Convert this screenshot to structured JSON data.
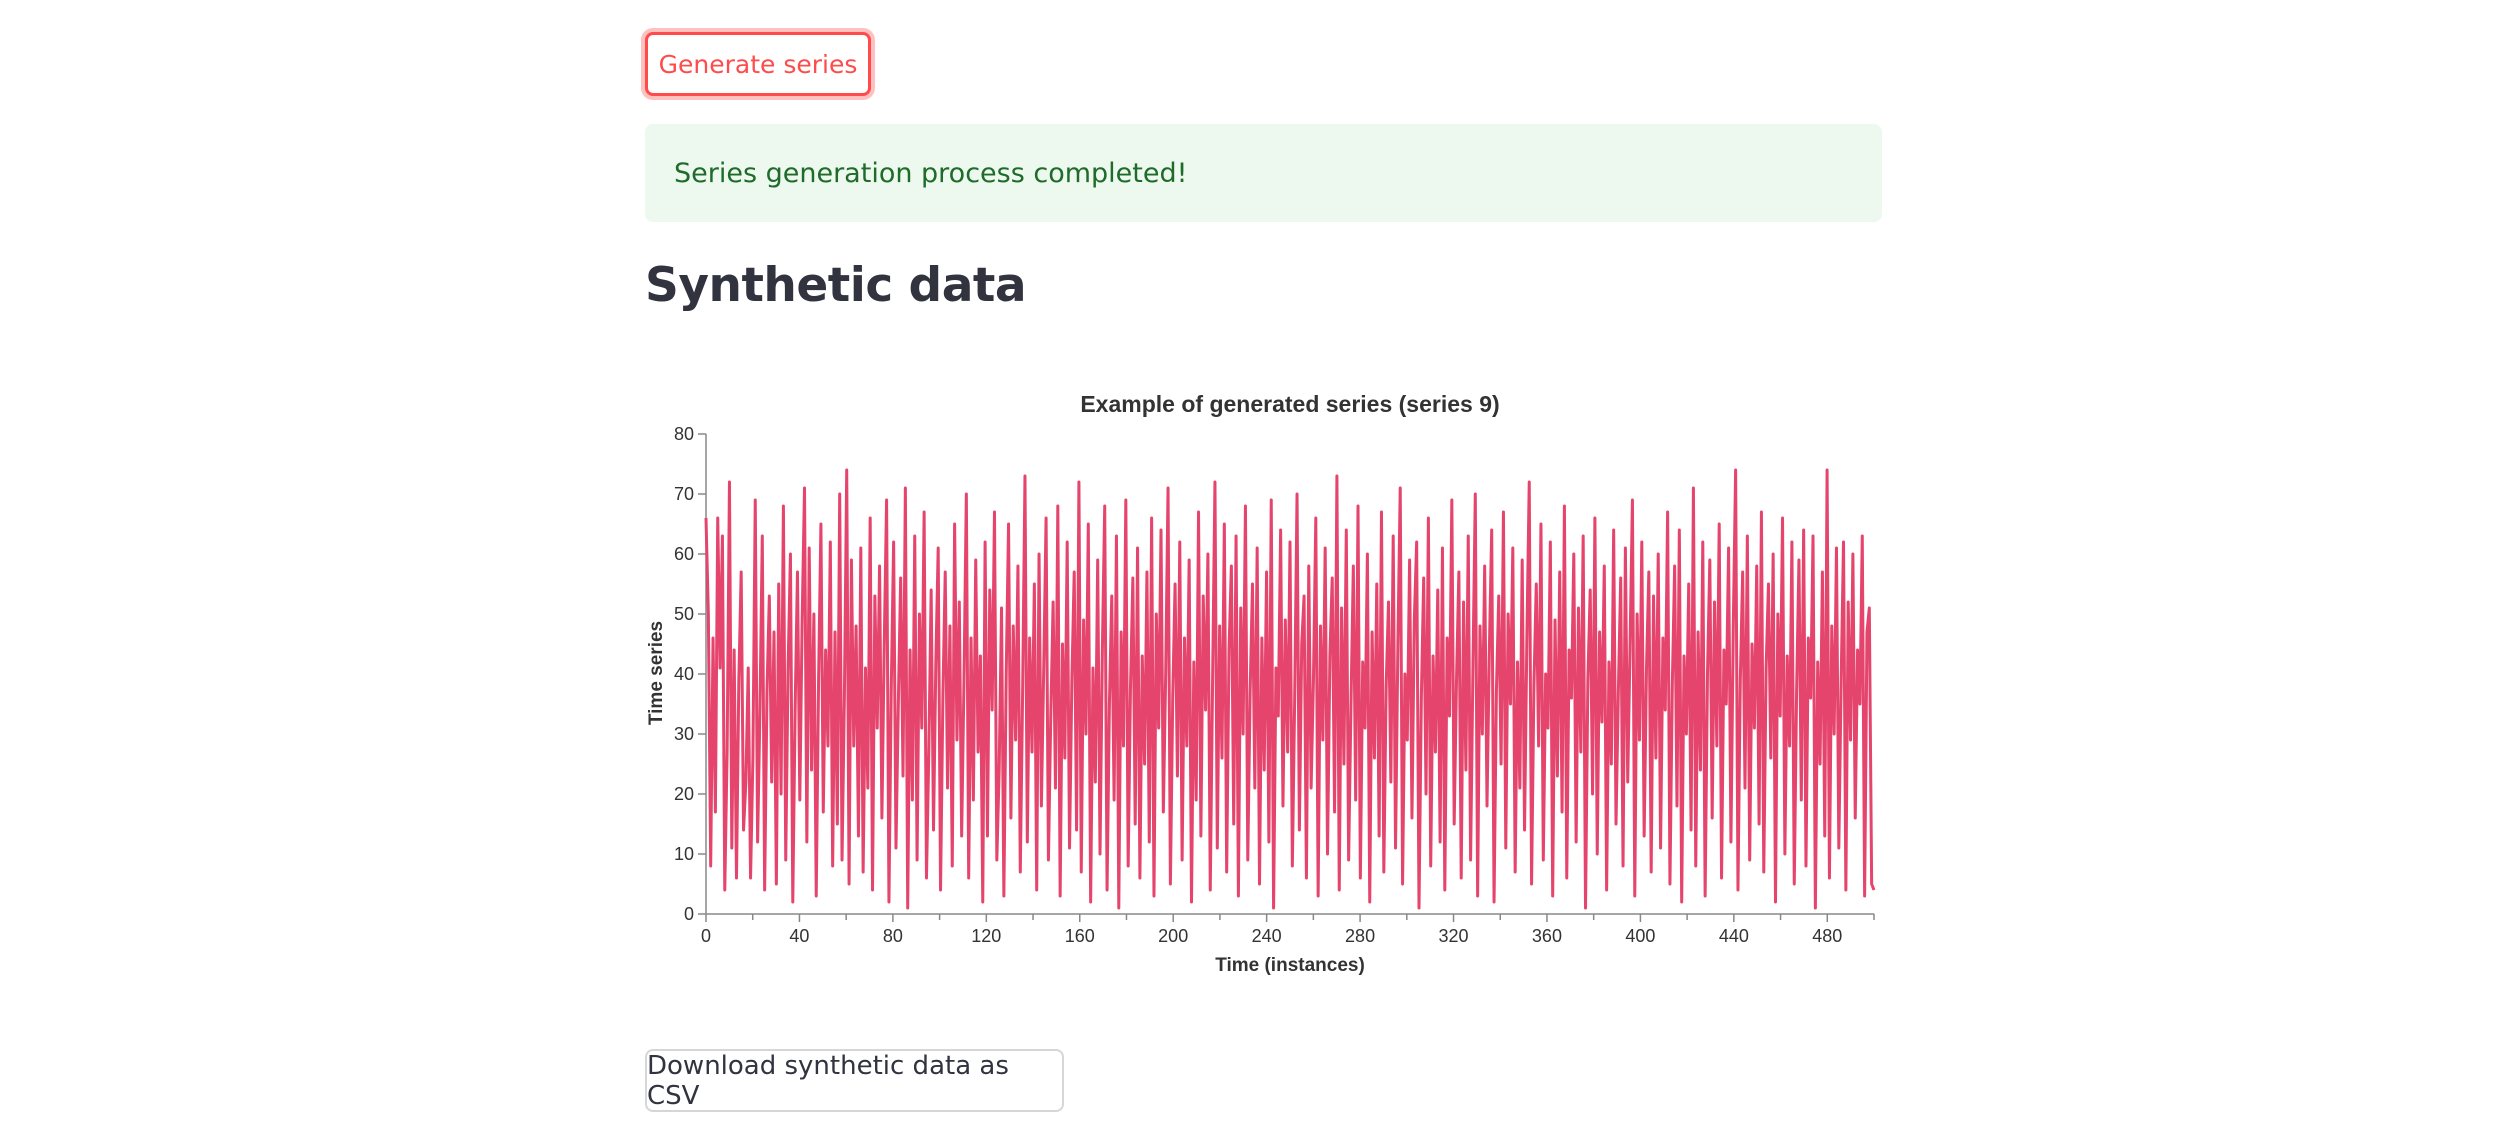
{
  "actions": {
    "generate_label": "Generate series",
    "download_label": "Download synthetic data as CSV"
  },
  "status": {
    "message": "Series generation process completed!"
  },
  "section": {
    "title": "Synthetic data"
  },
  "colors": {
    "primary": "#ff4b4b",
    "success_bg": "#edf8ee",
    "success_text": "#1e6b2a",
    "line": "#e5446d"
  },
  "chart_data": {
    "type": "line",
    "title": "Example of generated series (series 9)",
    "xlabel": "Time (instances)",
    "ylabel": "Time series",
    "xlim": [
      0,
      500
    ],
    "ylim": [
      0,
      80
    ],
    "x_ticks": [
      0,
      40,
      80,
      120,
      160,
      200,
      240,
      280,
      320,
      360,
      400,
      440,
      480
    ],
    "y_ticks": [
      0,
      10,
      20,
      30,
      40,
      50,
      60,
      70,
      80
    ],
    "grid": false,
    "series": [
      {
        "values": [
          66,
          50,
          8,
          46,
          17,
          66,
          41,
          63,
          4,
          27,
          72,
          11,
          44,
          6,
          39,
          57,
          14,
          22,
          41,
          6,
          26,
          69,
          12,
          34,
          63,
          4,
          37,
          53,
          22,
          47,
          5,
          55,
          20,
          68,
          9,
          41,
          60,
          2,
          34,
          57,
          19,
          49,
          71,
          12,
          61,
          24,
          50,
          3,
          39,
          65,
          17,
          44,
          28,
          62,
          8,
          47,
          15,
          70,
          9,
          36,
          74,
          5,
          59,
          28,
          48,
          13,
          61,
          7,
          41,
          21,
          66,
          4,
          53,
          31,
          58,
          16,
          45,
          69,
          2,
          38,
          62,
          11,
          35,
          56,
          23,
          71,
          1,
          44,
          19,
          63,
          9,
          50,
          31,
          67,
          6,
          27,
          54,
          14,
          42,
          61,
          4,
          36,
          57,
          21,
          48,
          8,
          65,
          29,
          52,
          13,
          39,
          70,
          6,
          46,
          19,
          59,
          27,
          43,
          2,
          62,
          13,
          54,
          34,
          67,
          9,
          24,
          51,
          3,
          40,
          65,
          16,
          48,
          29,
          58,
          7,
          37,
          73,
          12,
          46,
          27,
          55,
          4,
          60,
          18,
          41,
          66,
          9,
          33,
          52,
          21,
          68,
          3,
          45,
          26,
          62,
          11,
          39,
          57,
          14,
          72,
          7,
          49,
          30,
          65,
          2,
          41,
          22,
          59,
          10,
          44,
          68,
          4,
          35,
          53,
          19,
          63,
          1,
          47,
          28,
          69,
          8,
          38,
          56,
          15,
          61,
          6,
          43,
          25,
          57,
          12,
          66,
          3,
          50,
          31,
          64,
          17,
          40,
          71,
          5,
          36,
          55,
          23,
          62,
          9,
          46,
          28,
          59,
          2,
          42,
          19,
          67,
          13,
          53,
          34,
          60,
          4,
          39,
          72,
          11,
          48,
          26,
          65,
          7,
          44,
          58,
          15,
          63,
          3,
          51,
          30,
          68,
          9,
          37,
          55,
          21,
          61,
          5,
          46,
          24,
          57,
          12,
          69,
          1,
          41,
          33,
          64,
          18,
          49,
          27,
          62,
          8,
          36,
          70,
          14,
          45,
          53,
          6,
          58,
          21,
          39,
          66,
          3,
          48,
          29,
          61,
          10,
          43,
          56,
          17,
          73,
          4,
          51,
          25,
          64,
          9,
          35,
          58,
          19,
          68,
          6,
          42,
          31,
          60,
          2,
          47,
          26,
          55,
          13,
          67,
          7,
          38,
          52,
          22,
          63,
          11,
          45,
          71,
          5,
          40,
          29,
          59,
          16,
          49,
          62,
          1,
          36,
          56,
          20,
          66,
          8,
          43,
          27,
          54,
          12,
          61,
          4,
          46,
          33,
          69,
          15,
          39,
          57,
          6,
          52,
          24,
          63,
          9,
          41,
          70,
          3,
          48,
          30,
          58,
          18,
          44,
          64,
          2,
          37,
          53,
          25,
          67,
          11,
          50,
          35,
          61,
          7,
          42,
          21,
          59,
          14,
          46,
          72,
          5,
          38,
          55,
          28,
          65,
          9,
          40,
          31,
          62,
          3,
          49,
          23,
          57,
          17,
          68,
          6,
          44,
          36,
          60,
          12,
          51,
          27,
          63,
          1,
          39,
          54,
          20,
          66,
          10,
          47,
          32,
          58,
          4,
          42,
          25,
          64,
          15,
          37,
          56,
          8,
          61,
          22,
          45,
          69,
          3,
          50,
          29,
          62,
          13,
          41,
          57,
          7,
          53,
          26,
          60,
          11,
          46,
          34,
          67,
          5,
          38,
          58,
          18,
          64,
          2,
          43,
          30,
          55,
          14,
          71,
          8,
          47,
          24,
          62,
          3,
          40,
          59,
          16,
          52,
          28,
          65,
          6,
          44,
          35,
          61,
          12,
          48,
          74,
          4,
          39,
          57,
          21,
          63,
          9,
          45,
          31,
          58,
          15,
          67,
          7,
          41,
          55,
          26,
          60,
          2,
          50,
          33,
          66,
          10,
          43,
          28,
          62,
          5,
          37,
          59,
          19,
          64,
          8,
          46,
          36,
          63,
          1,
          42,
          25,
          57,
          13,
          74,
          6,
          48,
          30,
          61,
          11,
          39,
          62,
          4,
          52,
          29,
          60,
          16,
          44,
          35,
          63,
          3,
          47,
          51,
          5,
          4
        ]
      }
    ]
  }
}
